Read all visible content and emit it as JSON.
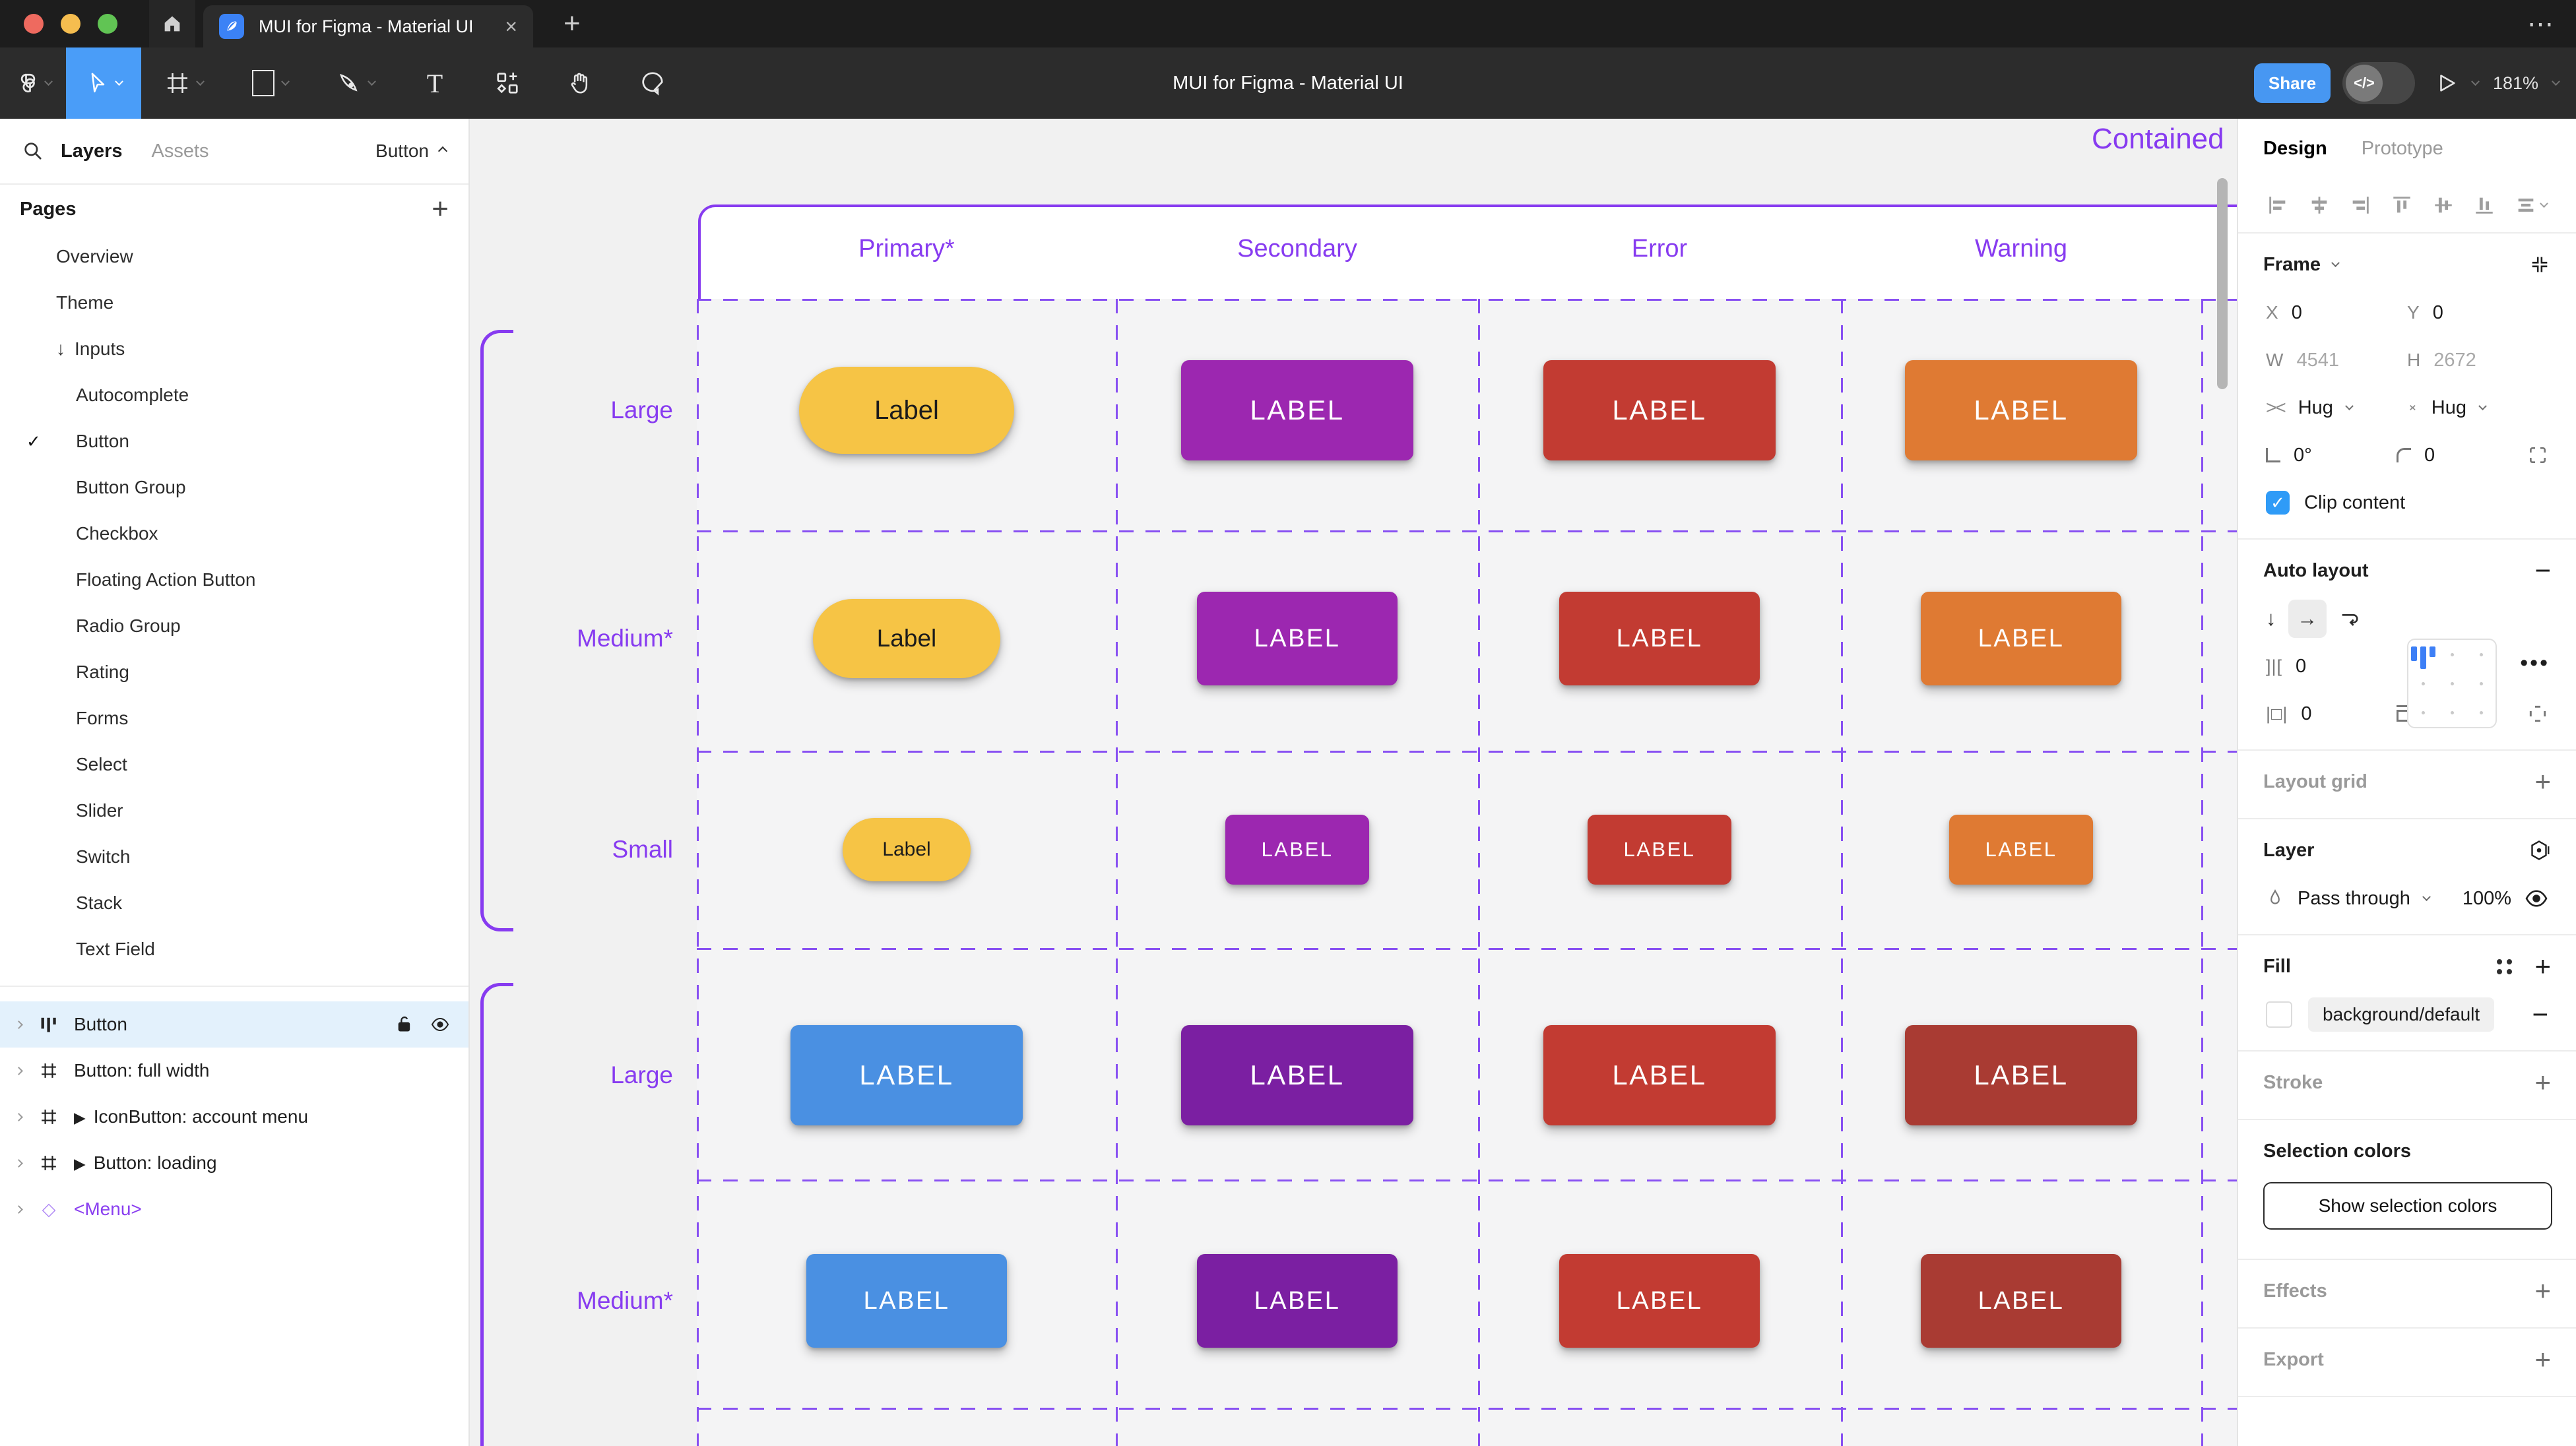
{
  "window": {
    "tab_title": "MUI for Figma - Material UI",
    "close_glyph": "×",
    "new_tab_glyph": "+",
    "more_glyph": "⋯"
  },
  "toolbar": {
    "title": "MUI for Figma - Material UI",
    "share_label": "Share",
    "dev_toggle_label": "</>",
    "zoom_level": "181%",
    "tools": [
      "figma-menu",
      "move-tool",
      "frame-tool",
      "shape-tool",
      "pen-tool",
      "text-tool",
      "resources-tool",
      "hand-tool",
      "comment-tool"
    ]
  },
  "sidebar": {
    "tabs": {
      "layers": "Layers",
      "assets": "Assets"
    },
    "selection_badge": "Button",
    "pages_header": "Pages",
    "pages": [
      {
        "label": "Overview",
        "indent": 1
      },
      {
        "label": "Theme",
        "indent": 1
      },
      {
        "label": "Inputs",
        "indent": 1,
        "arrow": "↓"
      },
      {
        "label": "Autocomplete",
        "indent": 2
      },
      {
        "label": "Button",
        "indent": 2,
        "checked": true
      },
      {
        "label": "Button Group",
        "indent": 2
      },
      {
        "label": "Checkbox",
        "indent": 2
      },
      {
        "label": "Floating Action Button",
        "indent": 2
      },
      {
        "label": "Radio Group",
        "indent": 2
      },
      {
        "label": "Rating",
        "indent": 2
      },
      {
        "label": "Forms",
        "indent": 2
      },
      {
        "label": "Select",
        "indent": 2
      },
      {
        "label": "Slider",
        "indent": 2
      },
      {
        "label": "Switch",
        "indent": 2
      },
      {
        "label": "Stack",
        "indent": 2
      },
      {
        "label": "Text Field",
        "indent": 2
      }
    ],
    "check_glyph": "✓",
    "layers": [
      {
        "label": "Button",
        "icon": "auto-layout-icon",
        "selected": true,
        "lock": true,
        "eye": true
      },
      {
        "label": "Button: full width",
        "icon": "frame-icon"
      },
      {
        "label": "IconButton: account menu",
        "icon": "frame-icon",
        "instance": true
      },
      {
        "label": "Button: loading",
        "icon": "frame-icon",
        "instance": true
      },
      {
        "label": "<Menu>",
        "icon": "component-diamond-icon",
        "purple": true
      }
    ],
    "instance_glyph": "▶",
    "diamond_glyph": "◇"
  },
  "canvas": {
    "frame_label": "Contained",
    "accent_color": "#873bf0",
    "columns": [
      "Primary*",
      "Secondary",
      "Error",
      "Warning"
    ],
    "rows": [
      {
        "label": "Large",
        "size": "large",
        "buttons": [
          {
            "text": "Label",
            "color": "#F6C445",
            "text_color": "#1c1c1c",
            "shape": "pill"
          },
          {
            "text": "LABEL",
            "color": "#9C27B0",
            "text_color": "#ffffff",
            "shape": "rect"
          },
          {
            "text": "LABEL",
            "color": "#C23B32",
            "text_color": "#ffffff",
            "shape": "rect"
          },
          {
            "text": "LABEL",
            "color": "#DF7A33",
            "text_color": "#ffffff",
            "shape": "rect"
          }
        ]
      },
      {
        "label": "Medium*",
        "size": "medium",
        "buttons": [
          {
            "text": "Label",
            "color": "#F6C445",
            "text_color": "#1c1c1c",
            "shape": "pill"
          },
          {
            "text": "LABEL",
            "color": "#9C27B0",
            "text_color": "#ffffff",
            "shape": "rect"
          },
          {
            "text": "LABEL",
            "color": "#C23B32",
            "text_color": "#ffffff",
            "shape": "rect"
          },
          {
            "text": "LABEL",
            "color": "#DF7A33",
            "text_color": "#ffffff",
            "shape": "rect"
          }
        ]
      },
      {
        "label": "Small",
        "size": "small",
        "buttons": [
          {
            "text": "Label",
            "color": "#F6C445",
            "text_color": "#1c1c1c",
            "shape": "pill"
          },
          {
            "text": "LABEL",
            "color": "#9C27B0",
            "text_color": "#ffffff",
            "shape": "rect"
          },
          {
            "text": "LABEL",
            "color": "#C23B32",
            "text_color": "#ffffff",
            "shape": "rect"
          },
          {
            "text": "LABEL",
            "color": "#DF7A33",
            "text_color": "#ffffff",
            "shape": "rect"
          }
        ]
      },
      {
        "label": "Large",
        "size": "large",
        "buttons": [
          {
            "text": "LABEL",
            "color": "#4A90E2",
            "text_color": "#ffffff",
            "shape": "rect"
          },
          {
            "text": "LABEL",
            "color": "#7B1FA2",
            "text_color": "#ffffff",
            "shape": "rect"
          },
          {
            "text": "LABEL",
            "color": "#C23B32",
            "text_color": "#ffffff",
            "shape": "rect"
          },
          {
            "text": "LABEL",
            "color": "#A93B33",
            "text_color": "#ffffff",
            "shape": "rect"
          }
        ]
      },
      {
        "label": "Medium*",
        "size": "medium",
        "buttons": [
          {
            "text": "LABEL",
            "color": "#4A90E2",
            "text_color": "#ffffff",
            "shape": "rect"
          },
          {
            "text": "LABEL",
            "color": "#7B1FA2",
            "text_color": "#ffffff",
            "shape": "rect"
          },
          {
            "text": "LABEL",
            "color": "#C23B32",
            "text_color": "#ffffff",
            "shape": "rect"
          },
          {
            "text": "LABEL",
            "color": "#A93B33",
            "text_color": "#ffffff",
            "shape": "rect"
          }
        ]
      }
    ]
  },
  "inspector": {
    "tabs": {
      "design": "Design",
      "prototype": "Prototype"
    },
    "frame": {
      "title": "Frame",
      "x_label": "X",
      "x": "0",
      "y_label": "Y",
      "y": "0",
      "w_label": "W",
      "w": "4541",
      "h_label": "H",
      "h": "2672",
      "h_resize": "Hug",
      "v_resize": "Hug",
      "rotation": "0°",
      "radius": "0",
      "clip_label": "Clip content"
    },
    "auto_layout": {
      "title": "Auto layout",
      "gap": "0",
      "pad_h": "0",
      "pad_v": "0",
      "down_glyph": "↓",
      "right_glyph": "→",
      "gap_glyph": "]|[",
      "hpad_glyph": "|□|"
    },
    "layout_grid": {
      "title": "Layout grid"
    },
    "layer": {
      "title": "Layer",
      "blend_mode": "Pass through",
      "opacity": "100%"
    },
    "fill": {
      "title": "Fill",
      "value": "background/default",
      "swatch_color": "#ffffff"
    },
    "stroke": {
      "title": "Stroke"
    },
    "selection_colors": {
      "title": "Selection colors",
      "button_label": "Show selection colors"
    },
    "effects": {
      "title": "Effects"
    },
    "export": {
      "title": "Export"
    }
  }
}
